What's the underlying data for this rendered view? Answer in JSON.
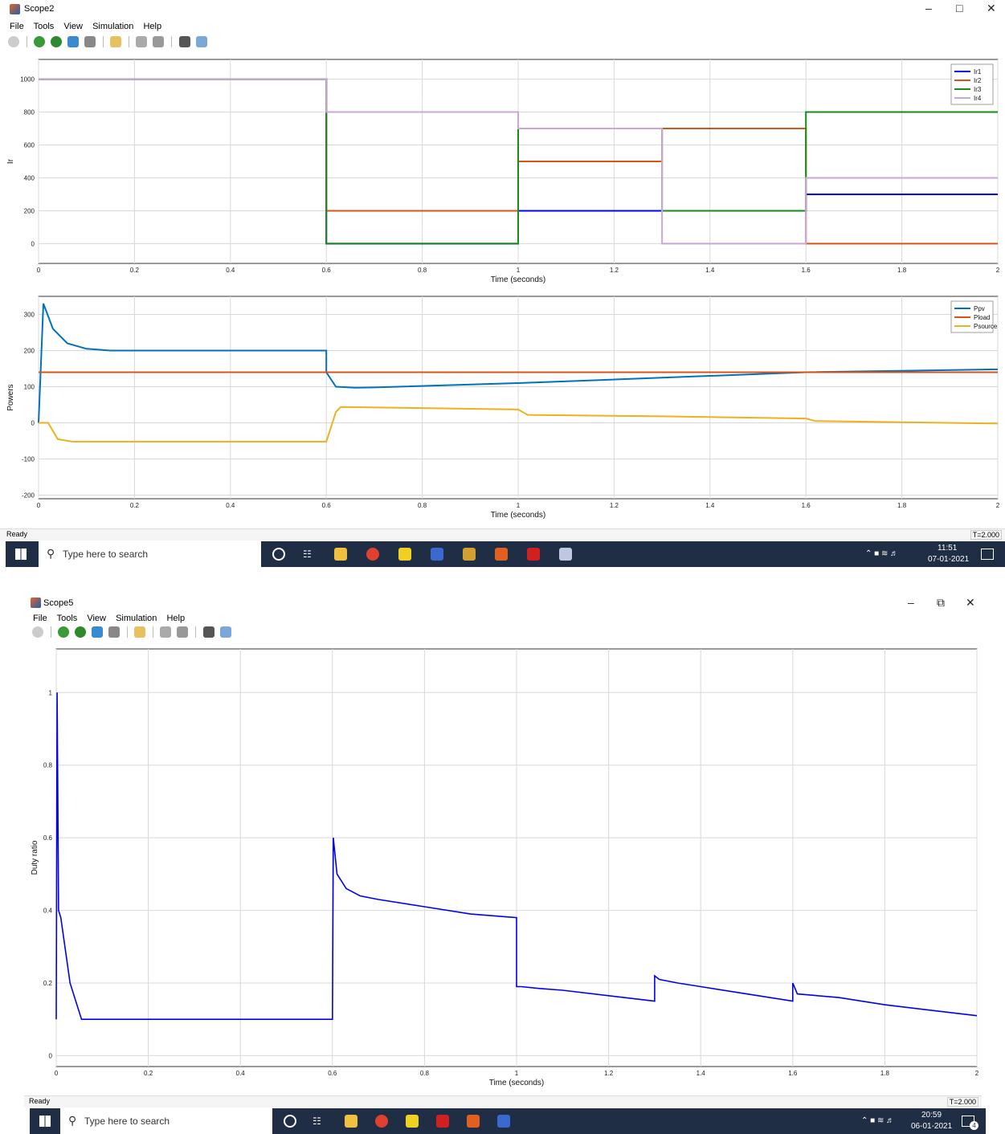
{
  "scope2": {
    "title": "Scope2",
    "menu": [
      "File",
      "Tools",
      "View",
      "Simulation",
      "Help"
    ],
    "status": "Ready",
    "time_indicator": "T=2.000",
    "taskbar": {
      "search_placeholder": "Type here to search",
      "time": "11:51",
      "date": "07-01-2021"
    }
  },
  "scope5": {
    "title": "Scope5",
    "menu": [
      "File",
      "Tools",
      "View",
      "Simulation",
      "Help"
    ],
    "status": "Ready",
    "time_indicator": "T=2.000",
    "taskbar": {
      "search_placeholder": "Type here to search",
      "time": "20:59",
      "date": "06-01-2021",
      "notification_count": "4"
    }
  },
  "colors": {
    "blue": "#0000ff",
    "orange": "#d95319",
    "green": "#1a8a1a",
    "lilac": "#c8a8d8",
    "ppv": "#0072bd",
    "pload": "#d95319",
    "psource": "#edb120",
    "duty": "#0000ee",
    "taskbar": "#1f2d45"
  },
  "chart_data": [
    {
      "type": "line",
      "id": "ir",
      "xlabel": "Time (seconds)",
      "ylabel": "Ir",
      "xlim": [
        0,
        2
      ],
      "ylim": [
        -120,
        1120
      ],
      "xticks": [
        0,
        0.2,
        0.4,
        0.6,
        0.8,
        1,
        1.2,
        1.4,
        1.6,
        1.8,
        2
      ],
      "yticks": [
        0,
        200,
        400,
        600,
        800,
        1000
      ],
      "grid": true,
      "legend_position": "top-right",
      "series": [
        {
          "name": "Ir1",
          "color": "blue",
          "x": [
            0,
            0.6,
            0.6,
            1,
            1,
            1.3,
            1.3,
            1.6,
            1.6,
            2
          ],
          "y": [
            1000,
            1000,
            0,
            0,
            200,
            200,
            200,
            200,
            300,
            300
          ]
        },
        {
          "name": "Ir2",
          "color": "orange",
          "x": [
            0,
            0.6,
            0.6,
            1,
            1,
            1.3,
            1.3,
            1.6,
            1.6,
            2
          ],
          "y": [
            1000,
            1000,
            200,
            200,
            500,
            500,
            700,
            700,
            0,
            0
          ]
        },
        {
          "name": "Ir3",
          "color": "green",
          "x": [
            0,
            0.6,
            0.6,
            1,
            1,
            1.3,
            1.3,
            1.6,
            1.6,
            2
          ],
          "y": [
            1000,
            1000,
            0,
            0,
            700,
            700,
            200,
            200,
            800,
            800
          ]
        },
        {
          "name": "Ir4",
          "color": "lilac",
          "x": [
            0,
            0.6,
            0.6,
            1,
            1,
            1.3,
            1.3,
            1.6,
            1.6,
            2
          ],
          "y": [
            1000,
            1000,
            800,
            800,
            700,
            700,
            0,
            0,
            400,
            400
          ]
        }
      ]
    },
    {
      "type": "line",
      "id": "powers",
      "xlabel": "Time (seconds)",
      "ylabel": "Powers",
      "xlim": [
        0,
        2
      ],
      "ylim": [
        -210,
        350
      ],
      "xticks": [
        0,
        0.2,
        0.4,
        0.6,
        0.8,
        1,
        1.2,
        1.4,
        1.6,
        1.8,
        2
      ],
      "yticks": [
        -200,
        -100,
        0,
        100,
        200,
        300
      ],
      "grid": true,
      "legend_position": "top-right",
      "series": [
        {
          "name": "Ppv",
          "color": "ppv",
          "x": [
            0,
            0.01,
            0.03,
            0.06,
            0.1,
            0.15,
            0.6,
            0.6,
            0.62,
            0.66,
            0.7,
            1,
            1.3,
            1.6,
            2
          ],
          "y": [
            0,
            330,
            260,
            220,
            205,
            200,
            200,
            140,
            100,
            97,
            98,
            110,
            125,
            140,
            148
          ]
        },
        {
          "name": "Pload",
          "color": "pload",
          "x": [
            0,
            2
          ],
          "y": [
            140,
            140
          ]
        },
        {
          "name": "Psource",
          "color": "psource",
          "x": [
            0,
            0.02,
            0.04,
            0.07,
            0.6,
            0.62,
            0.63,
            1,
            1.02,
            1.3,
            1.6,
            1.62,
            2
          ],
          "y": [
            0,
            0,
            -45,
            -52,
            -52,
            30,
            44,
            37,
            22,
            18,
            12,
            5,
            -2
          ]
        }
      ]
    },
    {
      "type": "line",
      "id": "duty",
      "xlabel": "Time (seconds)",
      "ylabel": "Duty ratio",
      "xlim": [
        0,
        2
      ],
      "ylim": [
        -0.03,
        1.12
      ],
      "xticks": [
        0,
        0.2,
        0.4,
        0.6,
        0.8,
        1,
        1.2,
        1.4,
        1.6,
        1.8,
        2
      ],
      "yticks": [
        0,
        0.2,
        0.4,
        0.6,
        0.8,
        1
      ],
      "grid": true,
      "series": [
        {
          "name": "",
          "color": "duty",
          "x": [
            0,
            0.002,
            0.005,
            0.01,
            0.03,
            0.055,
            0.6,
            0.6,
            0.602,
            0.61,
            0.63,
            0.66,
            0.7,
            0.8,
            0.9,
            1,
            1,
            1.01,
            1.05,
            1.1,
            1.2,
            1.3,
            1.3,
            1.31,
            1.35,
            1.4,
            1.5,
            1.6,
            1.6,
            1.61,
            1.7,
            1.8,
            1.9,
            2
          ],
          "y": [
            0.1,
            1.0,
            0.4,
            0.38,
            0.2,
            0.1,
            0.1,
            0.1,
            0.6,
            0.5,
            0.46,
            0.44,
            0.43,
            0.41,
            0.39,
            0.38,
            0.19,
            0.19,
            0.185,
            0.18,
            0.165,
            0.15,
            0.22,
            0.21,
            0.2,
            0.19,
            0.17,
            0.15,
            0.2,
            0.17,
            0.16,
            0.14,
            0.125,
            0.11
          ]
        }
      ]
    }
  ]
}
